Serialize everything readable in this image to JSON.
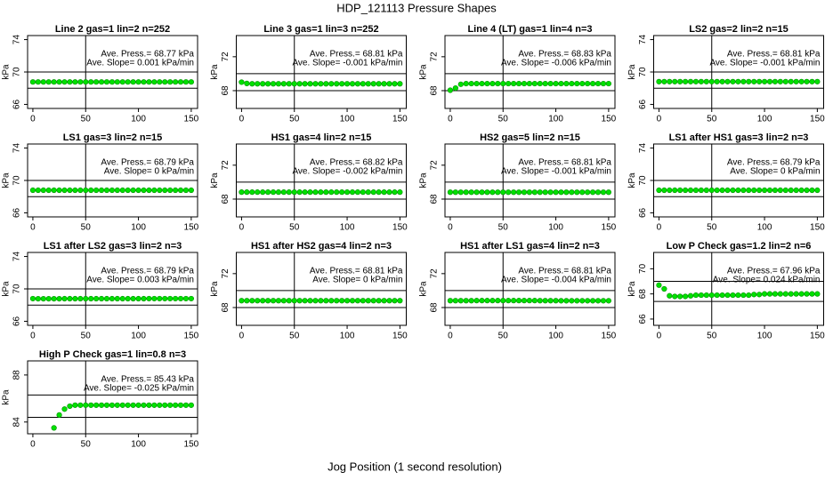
{
  "title": "HDP_121113  Pressure Shapes",
  "xlabel": "Jog Position (1 second resolution)",
  "chart_data": [
    {
      "type": "line",
      "title": "Line 2 gas=1 lin=2 n=252",
      "annotations": [
        "Ave. Press.= 68.77  kPa",
        "Ave. Slope= 0.001  kPa/min"
      ],
      "ylabel": "kPa",
      "color": "#00e000",
      "x": [
        0,
        5,
        10,
        15,
        20,
        25,
        30,
        35,
        40,
        45,
        50,
        55,
        60,
        65,
        70,
        75,
        80,
        85,
        90,
        95,
        100,
        105,
        110,
        115,
        120,
        125,
        130,
        135,
        140,
        145,
        150
      ],
      "values": [
        68.77,
        68.77,
        68.77,
        68.77,
        68.77,
        68.77,
        68.77,
        68.77,
        68.77,
        68.77,
        68.77,
        68.77,
        68.77,
        68.77,
        68.77,
        68.77,
        68.77,
        68.77,
        68.77,
        68.77,
        68.77,
        68.77,
        68.77,
        68.77,
        68.77,
        68.77,
        68.77,
        68.77,
        68.77,
        68.77,
        68.77
      ],
      "xlim": [
        -5,
        156
      ],
      "ylim": [
        65.5,
        74.5
      ],
      "xticks": [
        0,
        50,
        100,
        150
      ],
      "yticks": [
        66,
        70,
        74
      ],
      "hlines": [
        70,
        68
      ],
      "vline": 50
    },
    {
      "type": "line",
      "title": "Line 3 gas=1 lin=3 n=252",
      "annotations": [
        "Ave. Press.= 68.81  kPa",
        "Ave. Slope= -0.001  kPa/min"
      ],
      "ylabel": "kPa",
      "color": "#00e000",
      "x": [
        0,
        5,
        10,
        15,
        20,
        25,
        30,
        35,
        40,
        45,
        50,
        55,
        60,
        65,
        70,
        75,
        80,
        85,
        90,
        95,
        100,
        105,
        110,
        115,
        120,
        125,
        130,
        135,
        140,
        145,
        150
      ],
      "values": [
        69.0,
        68.85,
        68.81,
        68.81,
        68.81,
        68.81,
        68.81,
        68.81,
        68.81,
        68.81,
        68.81,
        68.81,
        68.81,
        68.81,
        68.81,
        68.81,
        68.81,
        68.81,
        68.81,
        68.81,
        68.81,
        68.81,
        68.81,
        68.81,
        68.81,
        68.81,
        68.81,
        68.81,
        68.81,
        68.81,
        68.81
      ],
      "xlim": [
        -5,
        156
      ],
      "ylim": [
        65.9,
        74.5
      ],
      "xticks": [
        0,
        50,
        100,
        150
      ],
      "yticks": [
        68,
        72
      ],
      "hlines": [
        70,
        68
      ],
      "vline": 50
    },
    {
      "type": "line",
      "title": "Line 4 (LT) gas=1 lin=4 n=3",
      "annotations": [
        "Ave. Press.= 68.83  kPa",
        "Ave. Slope= -0.006  kPa/min"
      ],
      "ylabel": "kPa",
      "color": "#00e000",
      "x": [
        0,
        5,
        10,
        15,
        20,
        25,
        30,
        35,
        40,
        45,
        50,
        55,
        60,
        65,
        70,
        75,
        80,
        85,
        90,
        95,
        100,
        105,
        110,
        115,
        120,
        125,
        130,
        135,
        140,
        145,
        150
      ],
      "values": [
        68.05,
        68.3,
        68.75,
        68.83,
        68.83,
        68.83,
        68.83,
        68.83,
        68.83,
        68.83,
        68.83,
        68.83,
        68.83,
        68.83,
        68.83,
        68.83,
        68.83,
        68.83,
        68.83,
        68.83,
        68.83,
        68.83,
        68.83,
        68.83,
        68.83,
        68.83,
        68.83,
        68.83,
        68.83,
        68.83,
        68.83
      ],
      "xlim": [
        -5,
        156
      ],
      "ylim": [
        65.9,
        74.5
      ],
      "xticks": [
        0,
        50,
        100,
        150
      ],
      "yticks": [
        68,
        72
      ],
      "hlines": [
        70,
        68
      ],
      "vline": 50
    },
    {
      "type": "line",
      "title": "LS2 gas=2 lin=2 n=15",
      "annotations": [
        "Ave. Press.= 68.81  kPa",
        "Ave. Slope= -0.001  kPa/min"
      ],
      "ylabel": "kPa",
      "color": "#00e000",
      "x": [
        0,
        5,
        10,
        15,
        20,
        25,
        30,
        35,
        40,
        45,
        50,
        55,
        60,
        65,
        70,
        75,
        80,
        85,
        90,
        95,
        100,
        105,
        110,
        115,
        120,
        125,
        130,
        135,
        140,
        145,
        150
      ],
      "values": [
        68.81,
        68.81,
        68.81,
        68.81,
        68.81,
        68.81,
        68.81,
        68.81,
        68.81,
        68.81,
        68.81,
        68.81,
        68.81,
        68.81,
        68.81,
        68.81,
        68.81,
        68.81,
        68.81,
        68.81,
        68.81,
        68.81,
        68.81,
        68.81,
        68.81,
        68.81,
        68.81,
        68.81,
        68.81,
        68.81,
        68.81
      ],
      "xlim": [
        -5,
        156
      ],
      "ylim": [
        65.5,
        74.5
      ],
      "xticks": [
        0,
        50,
        100,
        150
      ],
      "yticks": [
        66,
        70,
        74
      ],
      "hlines": [
        70,
        68
      ],
      "vline": 50
    },
    {
      "type": "line",
      "title": "LS1 gas=3 lin=2 n=15",
      "annotations": [
        "Ave. Press.= 68.79  kPa",
        "Ave. Slope= 0  kPa/min"
      ],
      "ylabel": "kPa",
      "color": "#00e000",
      "x": [
        0,
        5,
        10,
        15,
        20,
        25,
        30,
        35,
        40,
        45,
        50,
        55,
        60,
        65,
        70,
        75,
        80,
        85,
        90,
        95,
        100,
        105,
        110,
        115,
        120,
        125,
        130,
        135,
        140,
        145,
        150
      ],
      "values": [
        68.79,
        68.79,
        68.79,
        68.79,
        68.79,
        68.79,
        68.79,
        68.79,
        68.79,
        68.79,
        68.79,
        68.79,
        68.79,
        68.79,
        68.79,
        68.79,
        68.79,
        68.79,
        68.79,
        68.79,
        68.79,
        68.79,
        68.79,
        68.79,
        68.79,
        68.79,
        68.79,
        68.79,
        68.79,
        68.79,
        68.79
      ],
      "xlim": [
        -5,
        156
      ],
      "ylim": [
        65.5,
        74.5
      ],
      "xticks": [
        0,
        50,
        100,
        150
      ],
      "yticks": [
        66,
        70,
        74
      ],
      "hlines": [
        70,
        68
      ],
      "vline": 50
    },
    {
      "type": "line",
      "title": "HS1 gas=4 lin=2 n=15",
      "annotations": [
        "Ave. Press.= 68.82  kPa",
        "Ave. Slope= -0.002  kPa/min"
      ],
      "ylabel": "kPa",
      "color": "#00e000",
      "x": [
        0,
        5,
        10,
        15,
        20,
        25,
        30,
        35,
        40,
        45,
        50,
        55,
        60,
        65,
        70,
        75,
        80,
        85,
        90,
        95,
        100,
        105,
        110,
        115,
        120,
        125,
        130,
        135,
        140,
        145,
        150
      ],
      "values": [
        68.82,
        68.82,
        68.82,
        68.82,
        68.82,
        68.82,
        68.82,
        68.82,
        68.82,
        68.82,
        68.82,
        68.82,
        68.82,
        68.82,
        68.82,
        68.82,
        68.82,
        68.82,
        68.82,
        68.82,
        68.82,
        68.82,
        68.82,
        68.82,
        68.82,
        68.82,
        68.82,
        68.82,
        68.82,
        68.82,
        68.82
      ],
      "xlim": [
        -5,
        156
      ],
      "ylim": [
        65.9,
        74.5
      ],
      "xticks": [
        0,
        50,
        100,
        150
      ],
      "yticks": [
        68,
        72
      ],
      "hlines": [
        70,
        68
      ],
      "vline": 50
    },
    {
      "type": "line",
      "title": "HS2 gas=5 lin=2 n=15",
      "annotations": [
        "Ave. Press.= 68.81  kPa",
        "Ave. Slope= -0.001  kPa/min"
      ],
      "ylabel": "kPa",
      "color": "#00e000",
      "x": [
        0,
        5,
        10,
        15,
        20,
        25,
        30,
        35,
        40,
        45,
        50,
        55,
        60,
        65,
        70,
        75,
        80,
        85,
        90,
        95,
        100,
        105,
        110,
        115,
        120,
        125,
        130,
        135,
        140,
        145,
        150
      ],
      "values": [
        68.81,
        68.81,
        68.81,
        68.81,
        68.81,
        68.81,
        68.81,
        68.81,
        68.81,
        68.81,
        68.81,
        68.81,
        68.81,
        68.81,
        68.81,
        68.81,
        68.81,
        68.81,
        68.81,
        68.81,
        68.81,
        68.81,
        68.81,
        68.81,
        68.81,
        68.81,
        68.81,
        68.81,
        68.81,
        68.81,
        68.81
      ],
      "xlim": [
        -5,
        156
      ],
      "ylim": [
        65.9,
        74.5
      ],
      "xticks": [
        0,
        50,
        100,
        150
      ],
      "yticks": [
        68,
        72
      ],
      "hlines": [
        70,
        68
      ],
      "vline": 50
    },
    {
      "type": "line",
      "title": "LS1 after HS1 gas=3 lin=2 n=3",
      "annotations": [
        "Ave. Press.= 68.79  kPa",
        "Ave. Slope= 0  kPa/min"
      ],
      "ylabel": "kPa",
      "color": "#00e000",
      "x": [
        0,
        5,
        10,
        15,
        20,
        25,
        30,
        35,
        40,
        45,
        50,
        55,
        60,
        65,
        70,
        75,
        80,
        85,
        90,
        95,
        100,
        105,
        110,
        115,
        120,
        125,
        130,
        135,
        140,
        145,
        150
      ],
      "values": [
        68.79,
        68.79,
        68.79,
        68.79,
        68.79,
        68.79,
        68.79,
        68.79,
        68.79,
        68.79,
        68.79,
        68.79,
        68.79,
        68.79,
        68.79,
        68.79,
        68.79,
        68.79,
        68.79,
        68.79,
        68.79,
        68.79,
        68.79,
        68.79,
        68.79,
        68.79,
        68.79,
        68.79,
        68.79,
        68.79,
        68.79
      ],
      "xlim": [
        -5,
        156
      ],
      "ylim": [
        65.5,
        74.5
      ],
      "xticks": [
        0,
        50,
        100,
        150
      ],
      "yticks": [
        66,
        70,
        74
      ],
      "hlines": [
        70,
        68
      ],
      "vline": 50
    },
    {
      "type": "line",
      "title": "LS1 after LS2 gas=3 lin=2 n=3",
      "annotations": [
        "Ave. Press.= 68.79  kPa",
        "Ave. Slope= 0.003  kPa/min"
      ],
      "ylabel": "kPa",
      "color": "#00e000",
      "x": [
        0,
        5,
        10,
        15,
        20,
        25,
        30,
        35,
        40,
        45,
        50,
        55,
        60,
        65,
        70,
        75,
        80,
        85,
        90,
        95,
        100,
        105,
        110,
        115,
        120,
        125,
        130,
        135,
        140,
        145,
        150
      ],
      "values": [
        68.8,
        68.78,
        68.78,
        68.78,
        68.78,
        68.78,
        68.79,
        68.79,
        68.79,
        68.79,
        68.79,
        68.79,
        68.79,
        68.79,
        68.79,
        68.79,
        68.79,
        68.79,
        68.79,
        68.79,
        68.79,
        68.79,
        68.8,
        68.8,
        68.8,
        68.8,
        68.8,
        68.8,
        68.8,
        68.8,
        68.8
      ],
      "xlim": [
        -5,
        156
      ],
      "ylim": [
        65.5,
        74.5
      ],
      "xticks": [
        0,
        50,
        100,
        150
      ],
      "yticks": [
        66,
        70,
        74
      ],
      "hlines": [
        70,
        68
      ],
      "vline": 50
    },
    {
      "type": "line",
      "title": "HS1 after HS2 gas=4 lin=2 n=3",
      "annotations": [
        "Ave. Press.= 68.81  kPa",
        "Ave. Slope= 0  kPa/min"
      ],
      "ylabel": "kPa",
      "color": "#00e000",
      "x": [
        0,
        5,
        10,
        15,
        20,
        25,
        30,
        35,
        40,
        45,
        50,
        55,
        60,
        65,
        70,
        75,
        80,
        85,
        90,
        95,
        100,
        105,
        110,
        115,
        120,
        125,
        130,
        135,
        140,
        145,
        150
      ],
      "values": [
        68.81,
        68.81,
        68.81,
        68.81,
        68.81,
        68.81,
        68.81,
        68.81,
        68.81,
        68.81,
        68.81,
        68.81,
        68.81,
        68.81,
        68.81,
        68.81,
        68.81,
        68.81,
        68.81,
        68.81,
        68.81,
        68.81,
        68.81,
        68.81,
        68.81,
        68.81,
        68.81,
        68.81,
        68.81,
        68.81,
        68.81
      ],
      "xlim": [
        -5,
        156
      ],
      "ylim": [
        65.9,
        74.5
      ],
      "xticks": [
        0,
        50,
        100,
        150
      ],
      "yticks": [
        68,
        72
      ],
      "hlines": [
        70,
        68
      ],
      "vline": 50
    },
    {
      "type": "line",
      "title": "HS1 after LS1 gas=4 lin=2 n=3",
      "annotations": [
        "Ave. Press.= 68.81  kPa",
        "Ave. Slope= -0.004  kPa/min"
      ],
      "ylabel": "kPa",
      "color": "#00e000",
      "x": [
        0,
        5,
        10,
        15,
        20,
        25,
        30,
        35,
        40,
        45,
        50,
        55,
        60,
        65,
        70,
        75,
        80,
        85,
        90,
        95,
        100,
        105,
        110,
        115,
        120,
        125,
        130,
        135,
        140,
        145,
        150
      ],
      "values": [
        68.81,
        68.81,
        68.81,
        68.81,
        68.81,
        68.82,
        68.82,
        68.82,
        68.82,
        68.82,
        68.82,
        68.82,
        68.82,
        68.82,
        68.82,
        68.82,
        68.82,
        68.81,
        68.81,
        68.81,
        68.81,
        68.8,
        68.8,
        68.8,
        68.8,
        68.8,
        68.8,
        68.8,
        68.8,
        68.8,
        68.8
      ],
      "xlim": [
        -5,
        156
      ],
      "ylim": [
        65.9,
        74.5
      ],
      "xticks": [
        0,
        50,
        100,
        150
      ],
      "yticks": [
        68,
        72
      ],
      "hlines": [
        70,
        68
      ],
      "vline": 50
    },
    {
      "type": "line",
      "title": "Low P Check gas=1.2 lin=2 n=6",
      "annotations": [
        "Ave. Press.= 67.96  kPa",
        "Ave. Slope= 0.024  kPa/min"
      ],
      "ylabel": "kPa",
      "color": "#00e000",
      "x": [
        0,
        5,
        10,
        15,
        20,
        25,
        30,
        35,
        40,
        45,
        50,
        55,
        60,
        65,
        70,
        75,
        80,
        85,
        90,
        95,
        100,
        105,
        110,
        115,
        120,
        125,
        130,
        135,
        140,
        145,
        150
      ],
      "values": [
        68.7,
        68.4,
        67.85,
        67.8,
        67.8,
        67.8,
        67.85,
        67.9,
        67.9,
        67.9,
        67.9,
        67.9,
        67.9,
        67.9,
        67.9,
        67.9,
        67.9,
        67.9,
        67.95,
        67.95,
        68.0,
        68.0,
        68.0,
        68.0,
        68.0,
        68.0,
        68.0,
        68.0,
        68.0,
        68.0,
        68.0
      ],
      "xlim": [
        -5,
        156
      ],
      "ylim": [
        65.5,
        71.3
      ],
      "xticks": [
        0,
        50,
        100,
        150
      ],
      "yticks": [
        66,
        68,
        70
      ],
      "hlines": [
        69,
        67.4
      ],
      "vline": 50
    },
    {
      "type": "line",
      "title": "High P Check gas=1 lin=0.8 n=3",
      "annotations": [
        "Ave. Press.= 85.43  kPa",
        "Ave. Slope= -0.025  kPa/min"
      ],
      "ylabel": "kPa",
      "color": "#00e000",
      "x": [
        0,
        5,
        10,
        15,
        20,
        25,
        30,
        35,
        40,
        45,
        50,
        55,
        60,
        65,
        70,
        75,
        80,
        85,
        90,
        95,
        100,
        105,
        110,
        115,
        120,
        125,
        130,
        135,
        140,
        145,
        150
      ],
      "values": [
        null,
        null,
        null,
        null,
        83.5,
        84.6,
        85.1,
        85.35,
        85.43,
        85.43,
        85.43,
        85.43,
        85.43,
        85.43,
        85.43,
        85.43,
        85.43,
        85.43,
        85.43,
        85.43,
        85.43,
        85.43,
        85.43,
        85.43,
        85.43,
        85.43,
        85.43,
        85.43,
        85.43,
        85.43,
        85.43
      ],
      "xlim": [
        -5,
        156
      ],
      "ylim": [
        83,
        89.2
      ],
      "xticks": [
        0,
        50,
        100,
        150
      ],
      "yticks": [
        84,
        88
      ],
      "hlines": [
        86.3,
        84.4
      ],
      "vline": 50
    }
  ]
}
